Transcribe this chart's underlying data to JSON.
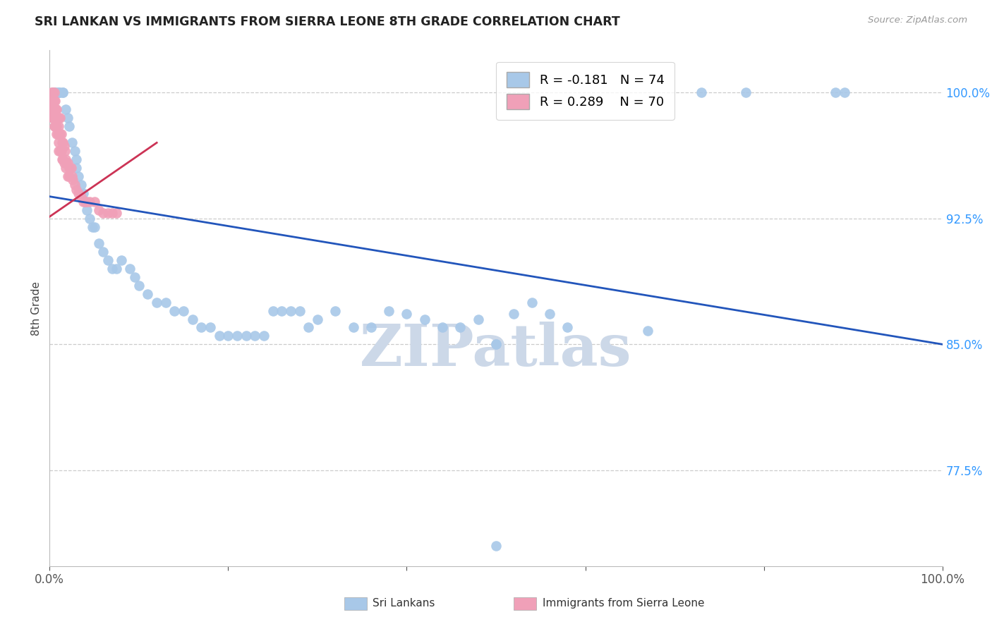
{
  "title": "SRI LANKAN VS IMMIGRANTS FROM SIERRA LEONE 8TH GRADE CORRELATION CHART",
  "source": "Source: ZipAtlas.com",
  "ylabel": "8th Grade",
  "xlim": [
    0.0,
    1.0
  ],
  "ylim": [
    0.718,
    1.025
  ],
  "yticks": [
    0.775,
    0.85,
    0.925,
    1.0
  ],
  "ytick_labels": [
    "77.5%",
    "85.0%",
    "92.5%",
    "100.0%"
  ],
  "xticks": [
    0.0,
    0.2,
    0.4,
    0.6,
    0.8,
    1.0
  ],
  "xtick_labels": [
    "0.0%",
    "",
    "",
    "",
    "",
    "100.0%"
  ],
  "blue_R": -0.181,
  "blue_N": 74,
  "pink_R": 0.289,
  "pink_N": 70,
  "blue_color": "#a8c8e8",
  "pink_color": "#f0a0b8",
  "blue_line_color": "#2255bb",
  "pink_line_color": "#cc3355",
  "watermark": "ZIPatlas",
  "watermark_color": "#ccd8e8",
  "legend_blue_label": "Sri Lankans",
  "legend_pink_label": "Immigrants from Sierra Leone",
  "blue_scatter_x": [
    0.005,
    0.005,
    0.005,
    0.008,
    0.01,
    0.01,
    0.012,
    0.015,
    0.015,
    0.018,
    0.02,
    0.022,
    0.025,
    0.028,
    0.03,
    0.03,
    0.032,
    0.035,
    0.038,
    0.04,
    0.042,
    0.045,
    0.048,
    0.05,
    0.055,
    0.06,
    0.065,
    0.07,
    0.075,
    0.08,
    0.09,
    0.095,
    0.1,
    0.11,
    0.12,
    0.13,
    0.14,
    0.15,
    0.16,
    0.17,
    0.18,
    0.19,
    0.2,
    0.21,
    0.22,
    0.23,
    0.24,
    0.25,
    0.26,
    0.27,
    0.28,
    0.29,
    0.3,
    0.32,
    0.34,
    0.36,
    0.38,
    0.4,
    0.42,
    0.44,
    0.46,
    0.48,
    0.5,
    0.5,
    0.52,
    0.54,
    0.56,
    0.58,
    0.67,
    0.73,
    0.78,
    0.88,
    0.89,
    0.5
  ],
  "blue_scatter_y": [
    1.0,
    1.0,
    1.0,
    1.0,
    1.0,
    1.0,
    1.0,
    1.0,
    1.0,
    0.99,
    0.985,
    0.98,
    0.97,
    0.965,
    0.96,
    0.955,
    0.95,
    0.945,
    0.94,
    0.935,
    0.93,
    0.925,
    0.92,
    0.92,
    0.91,
    0.905,
    0.9,
    0.895,
    0.895,
    0.9,
    0.895,
    0.89,
    0.885,
    0.88,
    0.875,
    0.875,
    0.87,
    0.87,
    0.865,
    0.86,
    0.86,
    0.855,
    0.855,
    0.855,
    0.855,
    0.855,
    0.855,
    0.87,
    0.87,
    0.87,
    0.87,
    0.86,
    0.865,
    0.87,
    0.86,
    0.86,
    0.87,
    0.868,
    0.865,
    0.86,
    0.86,
    0.865,
    0.85,
    0.85,
    0.868,
    0.875,
    0.868,
    0.86,
    0.858,
    1.0,
    1.0,
    1.0,
    1.0,
    0.73
  ],
  "pink_scatter_x": [
    0.002,
    0.002,
    0.002,
    0.003,
    0.003,
    0.003,
    0.003,
    0.004,
    0.004,
    0.004,
    0.004,
    0.005,
    0.005,
    0.005,
    0.005,
    0.005,
    0.006,
    0.006,
    0.006,
    0.006,
    0.007,
    0.007,
    0.007,
    0.008,
    0.008,
    0.008,
    0.008,
    0.009,
    0.009,
    0.01,
    0.01,
    0.01,
    0.01,
    0.01,
    0.012,
    0.012,
    0.012,
    0.013,
    0.013,
    0.014,
    0.014,
    0.015,
    0.015,
    0.016,
    0.016,
    0.017,
    0.018,
    0.018,
    0.019,
    0.02,
    0.02,
    0.022,
    0.022,
    0.024,
    0.025,
    0.026,
    0.028,
    0.03,
    0.032,
    0.035,
    0.038,
    0.04,
    0.042,
    0.045,
    0.05,
    0.055,
    0.06,
    0.065,
    0.07,
    0.075
  ],
  "pink_scatter_y": [
    1.0,
    0.995,
    0.99,
    1.0,
    0.995,
    0.99,
    0.985,
    1.0,
    0.995,
    0.99,
    0.985,
    1.0,
    0.995,
    0.99,
    0.985,
    0.98,
    0.995,
    0.99,
    0.985,
    0.98,
    0.99,
    0.985,
    0.98,
    0.99,
    0.985,
    0.98,
    0.975,
    0.985,
    0.975,
    0.985,
    0.98,
    0.975,
    0.97,
    0.965,
    0.985,
    0.975,
    0.965,
    0.975,
    0.965,
    0.97,
    0.96,
    0.97,
    0.96,
    0.968,
    0.958,
    0.965,
    0.96,
    0.955,
    0.958,
    0.958,
    0.95,
    0.955,
    0.95,
    0.955,
    0.95,
    0.948,
    0.945,
    0.942,
    0.94,
    0.938,
    0.935,
    0.935,
    0.935,
    0.935,
    0.935,
    0.93,
    0.928,
    0.928,
    0.928,
    0.928
  ],
  "blue_trendline_x": [
    0.0,
    1.0
  ],
  "blue_trendline_y": [
    0.938,
    0.85
  ],
  "pink_trendline_x": [
    0.0,
    0.12
  ],
  "pink_trendline_y": [
    0.926,
    0.97
  ]
}
